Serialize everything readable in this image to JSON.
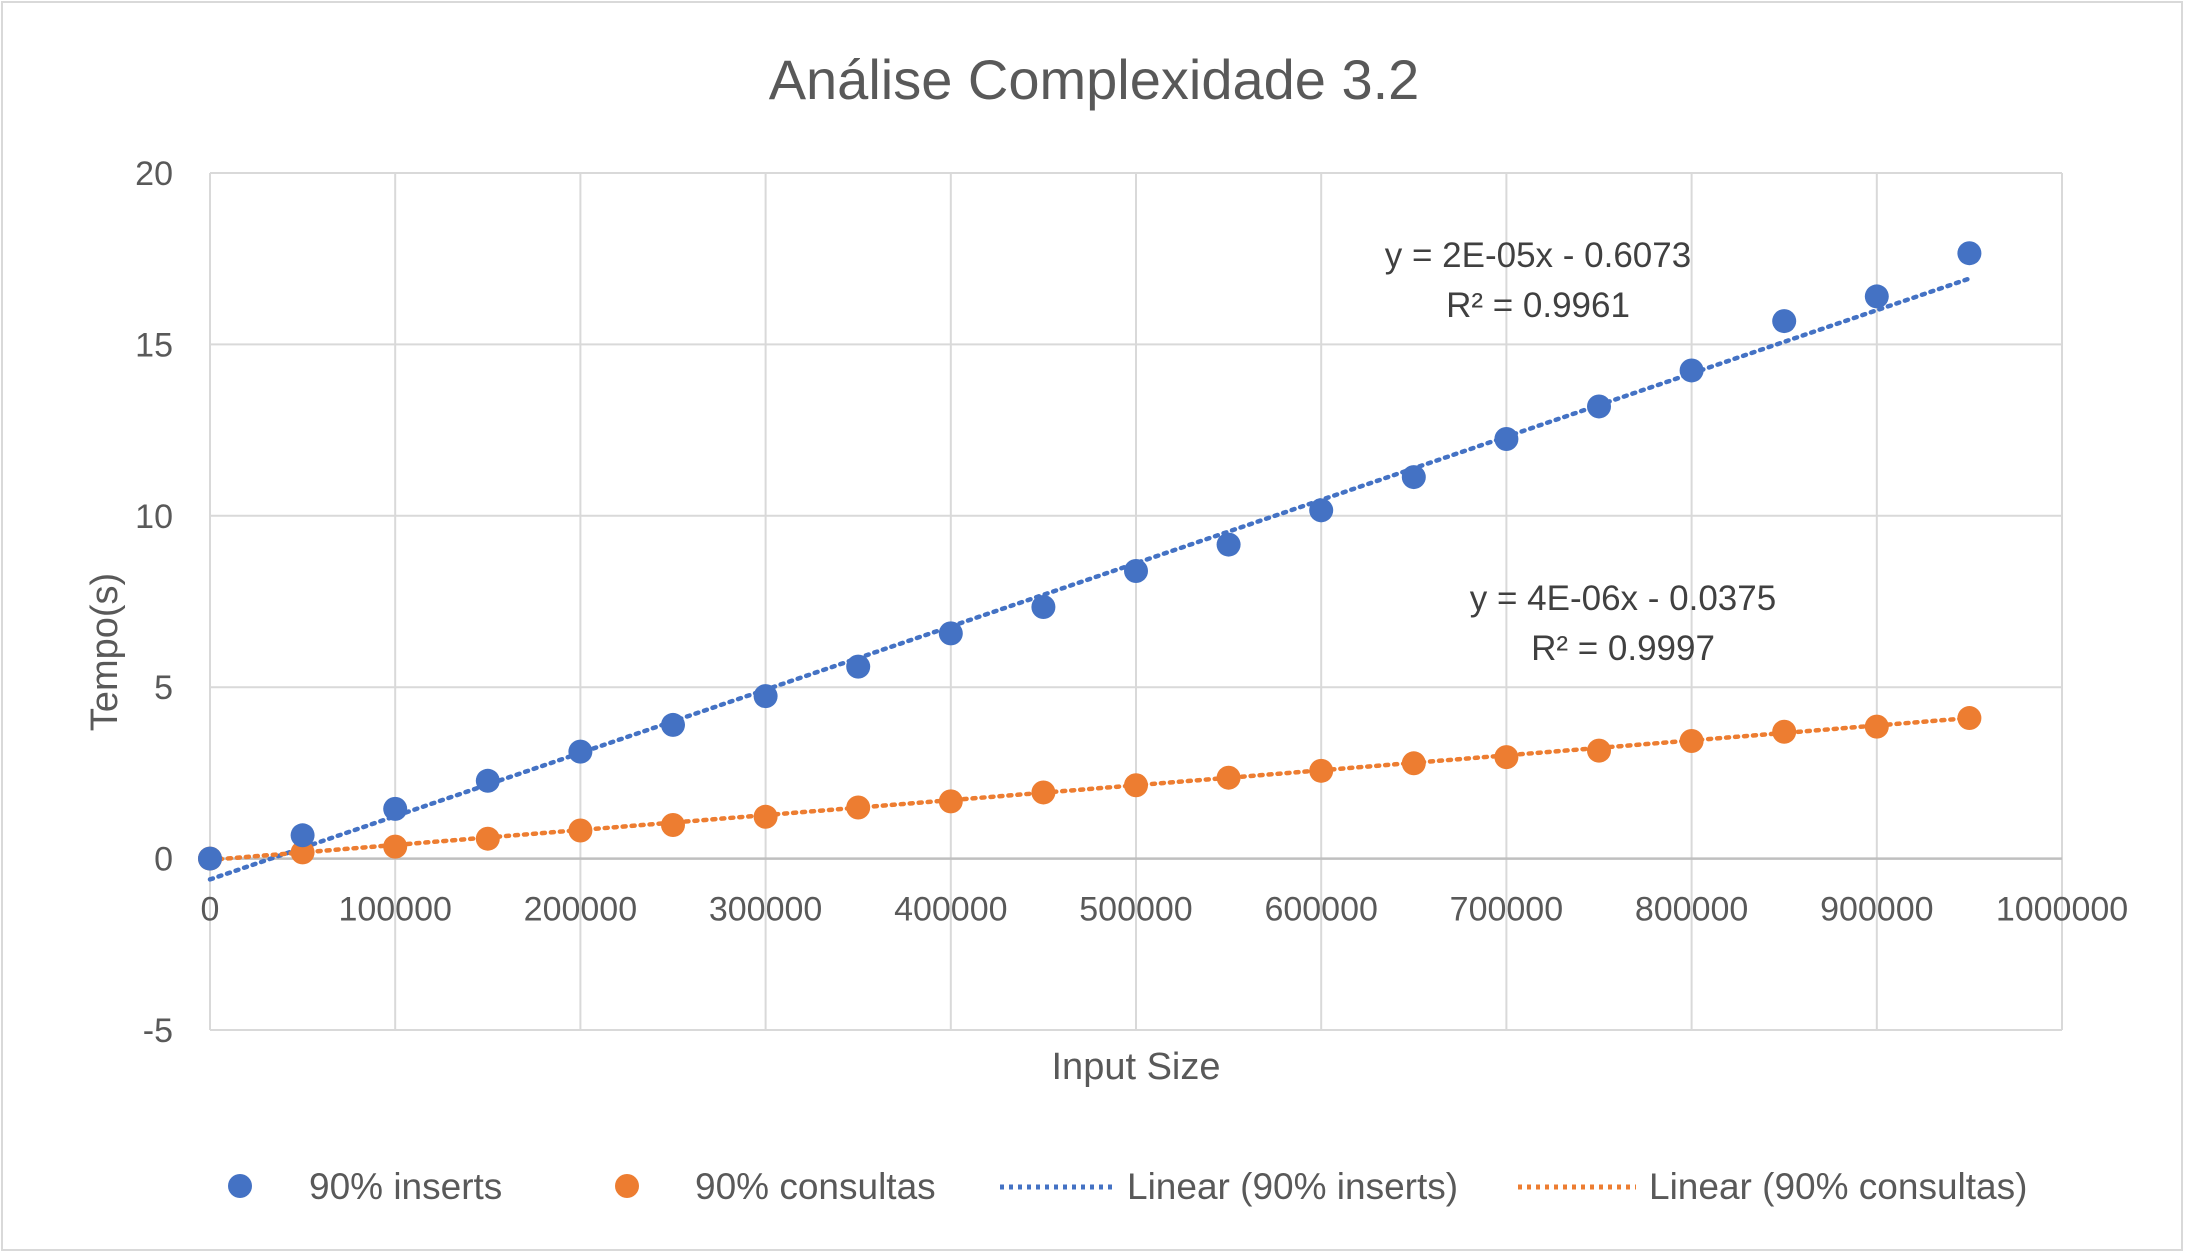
{
  "chart_data": {
    "type": "scatter",
    "title": "Análise Complexidade 3.2",
    "xlabel": "Input Size",
    "ylabel": "Tempo(s)",
    "xlim": [
      0,
      1000000
    ],
    "ylim": [
      -5,
      20
    ],
    "x_ticks": [
      0,
      100000,
      200000,
      300000,
      400000,
      500000,
      600000,
      700000,
      800000,
      900000,
      1000000
    ],
    "y_ticks": [
      -5,
      0,
      5,
      10,
      15,
      20
    ],
    "grid": true,
    "legend_position": "bottom",
    "series": [
      {
        "name": "90% inserts",
        "color": "#4472c4",
        "x": [
          0,
          50000,
          100000,
          150000,
          200000,
          250000,
          300000,
          350000,
          400000,
          450000,
          500000,
          550000,
          600000,
          650000,
          700000,
          750000,
          800000,
          850000,
          900000,
          950000
        ],
        "y": [
          0.0,
          0.68,
          1.45,
          2.27,
          3.12,
          3.9,
          4.74,
          5.6,
          6.57,
          7.34,
          8.39,
          9.16,
          10.16,
          11.13,
          12.24,
          13.19,
          14.24,
          15.68,
          16.4,
          17.66
        ]
      },
      {
        "name": "90% consultas",
        "color": "#ed7d31",
        "x": [
          0,
          50000,
          100000,
          150000,
          200000,
          250000,
          300000,
          350000,
          400000,
          450000,
          500000,
          550000,
          600000,
          650000,
          700000,
          750000,
          800000,
          850000,
          900000,
          950000
        ],
        "y": [
          0.0,
          0.18,
          0.35,
          0.58,
          0.82,
          0.98,
          1.22,
          1.49,
          1.67,
          1.93,
          2.14,
          2.36,
          2.56,
          2.78,
          2.96,
          3.15,
          3.43,
          3.7,
          3.85,
          4.1
        ]
      }
    ],
    "trendlines": [
      {
        "name": "Linear (90% inserts)",
        "color": "#4472c4",
        "slope": 1.845e-05,
        "intercept": -0.6073,
        "x_range": [
          0,
          950000
        ],
        "equation": "y = 2E-05x - 0.6073",
        "r2": "R² = 0.9961"
      },
      {
        "name": "Linear (90% consultas)",
        "color": "#ed7d31",
        "slope": 4.356e-06,
        "intercept": -0.0375,
        "x_range": [
          0,
          950000
        ],
        "equation": "y = 4E-06x - 0.0375",
        "r2": "R² = 0.9997"
      }
    ]
  }
}
